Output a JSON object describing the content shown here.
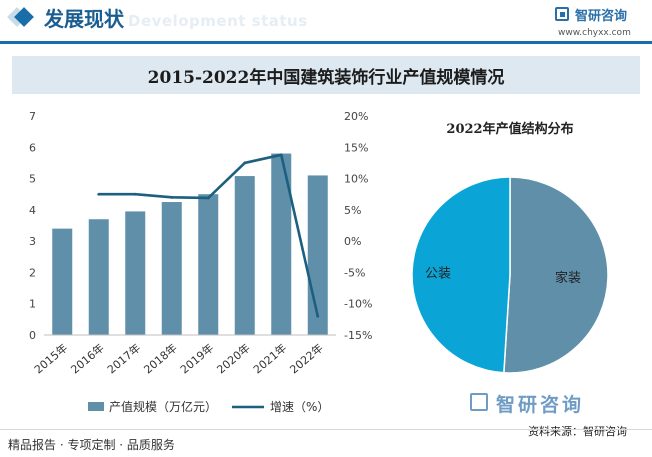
{
  "header": {
    "section_title": "发展现状",
    "section_title_en": "Development status",
    "logo_name": "智研咨询",
    "logo_url": "www.chyxx.com"
  },
  "colors": {
    "brand": "#1a6ea8",
    "bar": "#5f8fa9",
    "line": "#1d5f80",
    "pie_home": "#5f8fa9",
    "pie_public": "#0aa5d6"
  },
  "chart_data": [
    {
      "type": "bar",
      "title": "2015-2022年中国建筑装饰行业产值规模情况",
      "categories": [
        "2015年",
        "2016年",
        "2017年",
        "2018年",
        "2019年",
        "2020年",
        "2021年",
        "2022年"
      ],
      "series": [
        {
          "name": "产值规模（万亿元）",
          "type": "bar",
          "axis": "left",
          "values": [
            3.4,
            3.7,
            3.95,
            4.25,
            4.5,
            5.08,
            5.8,
            5.1
          ]
        },
        {
          "name": "增速（%）",
          "type": "line",
          "axis": "right",
          "values": [
            null,
            7.5,
            7.5,
            7.0,
            6.9,
            12.5,
            13.8,
            -12.0
          ]
        }
      ],
      "ylim": [
        0,
        7
      ],
      "yticks": [
        "0",
        "1",
        "2",
        "3",
        "4",
        "5",
        "6",
        "7"
      ],
      "y2lim": [
        -15,
        20
      ],
      "y2ticks": [
        "-15%",
        "-10%",
        "-5%",
        "0%",
        "5%",
        "10%",
        "15%",
        "20%"
      ],
      "legend_position": "bottom"
    },
    {
      "type": "pie",
      "title": "2022年产值结构分布",
      "labels": [
        "家装",
        "公装"
      ],
      "values": [
        51,
        49
      ]
    }
  ],
  "footer": {
    "left": "精品报告 · 专项定制 · 品质服务",
    "logo": "智研咨询",
    "source": "资料来源：智研咨询"
  }
}
